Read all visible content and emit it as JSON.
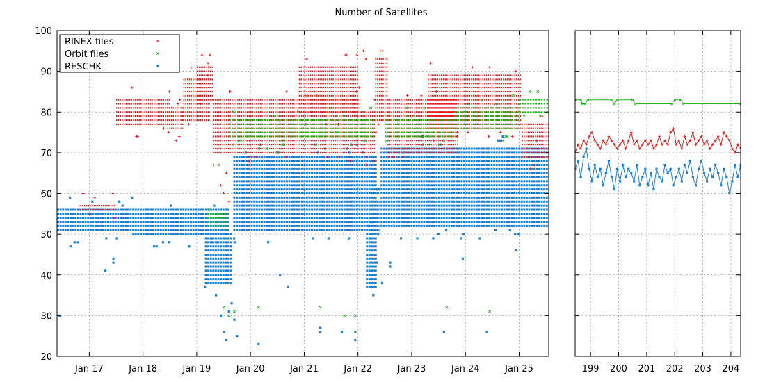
{
  "chart_data": {
    "title": "Number of Satellites",
    "type": "scatter",
    "grid": true,
    "legend_position": "top-left",
    "colors": {
      "rinex": "#e41a1c",
      "orbit": "#1fb51f",
      "reschk": "#1a7fd6"
    },
    "legend": [
      {
        "key": "rinex",
        "label": "RINEX files",
        "marker": "plus"
      },
      {
        "key": "orbit",
        "label": "Orbit files",
        "marker": "cross"
      },
      {
        "key": "reschk",
        "label": "RESCHK",
        "marker": "square"
      }
    ],
    "yaxis": {
      "min": 20,
      "max": 100,
      "ticks": [
        "20",
        "30",
        "40",
        "50",
        "60",
        "70",
        "80",
        "90",
        "100"
      ]
    },
    "left_panel": {
      "xaxis": {
        "min": 16.4,
        "max": 25.55,
        "ticks": [
          17,
          18,
          19,
          20,
          21,
          22,
          23,
          24,
          25
        ],
        "labels": [
          "Jan 17",
          "Jan 18",
          "Jan 19",
          "Jan 20",
          "Jan 21",
          "Jan 22",
          "Jan 23",
          "Jan 24",
          "Jan 25"
        ]
      },
      "bands": [
        {
          "series": "reschk",
          "segments": [
            {
              "x": [
                16.4,
                17.8
              ],
              "y": [
                51,
                56
              ]
            },
            {
              "x": [
                17.8,
                19.6
              ],
              "y": [
                50,
                56
              ]
            },
            {
              "x": [
                19.15,
                19.65
              ],
              "y": [
                38,
                50
              ]
            },
            {
              "x": [
                19.68,
                22.35
              ],
              "y": [
                51,
                69
              ]
            },
            {
              "x": [
                22.15,
                22.35
              ],
              "y": [
                37,
                50
              ]
            },
            {
              "x": [
                22.35,
                22.42
              ],
              "y": [
                51,
                58
              ]
            },
            {
              "x": [
                22.42,
                25.55
              ],
              "y": [
                52,
                71
              ]
            }
          ]
        },
        {
          "series": "rinex",
          "segments": [
            {
              "x": [
                17.5,
                18.5
              ],
              "y": [
                77,
                83
              ]
            },
            {
              "x": [
                18.45,
                18.75
              ],
              "y": [
                76,
                81
              ]
            },
            {
              "x": [
                18.75,
                19.25
              ],
              "y": [
                78,
                88
              ]
            },
            {
              "x": [
                19.0,
                19.3
              ],
              "y": [
                83,
                91
              ]
            },
            {
              "x": [
                19.3,
                22.05
              ],
              "y": [
                70,
                83
              ]
            },
            {
              "x": [
                20.9,
                22.0
              ],
              "y": [
                80,
                91
              ]
            },
            {
              "x": [
                22.05,
                22.32
              ],
              "y": [
                70,
                80
              ]
            },
            {
              "x": [
                22.32,
                22.55
              ],
              "y": [
                78,
                93
              ]
            },
            {
              "x": [
                22.55,
                23.85
              ],
              "y": [
                70,
                83
              ]
            },
            {
              "x": [
                23.3,
                25.05
              ],
              "y": [
                76,
                89
              ]
            },
            {
              "x": [
                25.05,
                25.55
              ],
              "y": [
                69,
                77
              ]
            },
            {
              "x": [
                16.8,
                17.5
              ],
              "y": [
                56,
                57
              ]
            }
          ]
        },
        {
          "series": "orbit",
          "segments": [
            {
              "x": [
                19.2,
                19.6
              ],
              "y": [
                52,
                55
              ]
            },
            {
              "x": [
                19.6,
                22.3
              ],
              "y": [
                74,
                78
              ]
            },
            {
              "x": [
                22.5,
                23.8
              ],
              "y": [
                74,
                78
              ]
            },
            {
              "x": [
                23.8,
                25.0
              ],
              "y": [
                76,
                81
              ]
            },
            {
              "x": [
                25.0,
                25.55
              ],
              "y": [
                80,
                83
              ]
            }
          ]
        }
      ],
      "outliers": {
        "reschk": [
          [
            16.45,
            30
          ],
          [
            16.65,
            47
          ],
          [
            17.3,
            41
          ],
          [
            17.45,
            43
          ],
          [
            17.45,
            44
          ],
          [
            19.45,
            30
          ],
          [
            19.5,
            26
          ],
          [
            19.55,
            24
          ],
          [
            19.6,
            31
          ],
          [
            19.65,
            33
          ],
          [
            19.7,
            29
          ],
          [
            19.75,
            25
          ],
          [
            20.15,
            23
          ],
          [
            20.55,
            40
          ],
          [
            20.7,
            37
          ],
          [
            21.3,
            27
          ],
          [
            21.3,
            26
          ],
          [
            21.7,
            26
          ],
          [
            21.95,
            26
          ],
          [
            21.95,
            24
          ],
          [
            22.35,
            43
          ],
          [
            22.45,
            38
          ],
          [
            22.6,
            42
          ],
          [
            22.6,
            43
          ],
          [
            23.6,
            26
          ],
          [
            23.95,
            44
          ],
          [
            24.4,
            26
          ],
          [
            24.95,
            46
          ]
        ],
        "orbit": [
          [
            19.5,
            32
          ],
          [
            19.6,
            30
          ],
          [
            19.7,
            31
          ],
          [
            20.15,
            32
          ],
          [
            20.3,
            71
          ],
          [
            21.3,
            32
          ],
          [
            21.75,
            30
          ],
          [
            21.95,
            30
          ],
          [
            23.65,
            32
          ],
          [
            24.45,
            31
          ],
          [
            20.5,
            70
          ],
          [
            21.6,
            75
          ]
        ],
        "rinex": [
          [
            19.5,
            60
          ],
          [
            19.45,
            62
          ],
          [
            19.55,
            65
          ],
          [
            19.6,
            58
          ],
          [
            22.1,
            95
          ],
          [
            22.15,
            93
          ],
          [
            24.45,
            91
          ],
          [
            20.1,
            69
          ],
          [
            23.85,
            75
          ]
        ]
      }
    },
    "right_panel": {
      "xaxis": {
        "min": 198.45,
        "max": 204.35,
        "ticks": [
          199,
          200,
          201,
          202,
          203,
          204
        ],
        "labels": [
          "199",
          "200",
          "201",
          "202",
          "203",
          "204"
        ]
      },
      "orbit": [
        [
          198.45,
          83
        ],
        [
          198.65,
          83
        ],
        [
          198.7,
          82
        ],
        [
          198.8,
          82
        ],
        [
          198.9,
          83
        ],
        [
          199.75,
          83
        ],
        [
          199.85,
          82
        ],
        [
          199.95,
          83
        ],
        [
          200.5,
          83
        ],
        [
          200.6,
          82
        ],
        [
          201.9,
          82
        ],
        [
          202.0,
          83
        ],
        [
          202.2,
          83
        ],
        [
          202.3,
          82
        ],
        [
          204.35,
          82
        ]
      ],
      "rinex": [
        [
          198.45,
          70
        ],
        [
          198.55,
          72
        ],
        [
          198.65,
          71
        ],
        [
          198.75,
          73
        ],
        [
          198.85,
          72
        ],
        [
          198.95,
          74
        ],
        [
          199.05,
          75
        ],
        [
          199.15,
          73
        ],
        [
          199.25,
          72
        ],
        [
          199.35,
          71
        ],
        [
          199.45,
          73
        ],
        [
          199.55,
          72
        ],
        [
          199.65,
          74
        ],
        [
          199.75,
          73
        ],
        [
          199.85,
          72
        ],
        [
          199.95,
          71
        ],
        [
          200.05,
          72
        ],
        [
          200.15,
          73
        ],
        [
          200.25,
          71
        ],
        [
          200.35,
          73
        ],
        [
          200.45,
          75
        ],
        [
          200.55,
          72
        ],
        [
          200.65,
          73
        ],
        [
          200.75,
          71
        ],
        [
          200.85,
          72
        ],
        [
          200.95,
          73
        ],
        [
          201.05,
          72
        ],
        [
          201.15,
          73
        ],
        [
          201.25,
          71
        ],
        [
          201.35,
          72
        ],
        [
          201.45,
          74
        ],
        [
          201.55,
          72
        ],
        [
          201.65,
          73
        ],
        [
          201.75,
          72
        ],
        [
          201.85,
          75
        ],
        [
          201.95,
          76
        ],
        [
          202.05,
          72
        ],
        [
          202.15,
          73
        ],
        [
          202.25,
          71
        ],
        [
          202.35,
          74
        ],
        [
          202.45,
          72
        ],
        [
          202.55,
          73
        ],
        [
          202.65,
          75
        ],
        [
          202.75,
          72
        ],
        [
          202.85,
          73
        ],
        [
          202.95,
          74
        ],
        [
          203.05,
          72
        ],
        [
          203.15,
          73
        ],
        [
          203.25,
          71
        ],
        [
          203.35,
          72
        ],
        [
          203.45,
          73
        ],
        [
          203.55,
          74
        ],
        [
          203.65,
          72
        ],
        [
          203.75,
          75
        ],
        [
          203.85,
          74
        ],
        [
          203.95,
          73
        ],
        [
          204.05,
          71
        ],
        [
          204.15,
          70
        ],
        [
          204.25,
          72
        ],
        [
          204.35,
          71
        ]
      ],
      "reschk": [
        [
          198.45,
          66
        ],
        [
          198.55,
          68
        ],
        [
          198.65,
          64
        ],
        [
          198.75,
          69
        ],
        [
          198.85,
          71
        ],
        [
          198.95,
          66
        ],
        [
          199.05,
          63
        ],
        [
          199.15,
          67
        ],
        [
          199.25,
          64
        ],
        [
          199.35,
          66
        ],
        [
          199.45,
          62
        ],
        [
          199.55,
          65
        ],
        [
          199.65,
          68
        ],
        [
          199.75,
          64
        ],
        [
          199.85,
          61
        ],
        [
          199.95,
          66
        ],
        [
          200.05,
          63
        ],
        [
          200.15,
          67
        ],
        [
          200.25,
          64
        ],
        [
          200.35,
          66
        ],
        [
          200.45,
          65
        ],
        [
          200.55,
          63
        ],
        [
          200.65,
          67
        ],
        [
          200.75,
          62
        ],
        [
          200.85,
          64
        ],
        [
          200.95,
          66
        ],
        [
          201.05,
          62
        ],
        [
          201.15,
          65
        ],
        [
          201.25,
          61
        ],
        [
          201.35,
          66
        ],
        [
          201.45,
          64
        ],
        [
          201.55,
          63
        ],
        [
          201.65,
          67
        ],
        [
          201.75,
          65
        ],
        [
          201.85,
          66
        ],
        [
          201.95,
          62
        ],
        [
          202.05,
          64
        ],
        [
          202.15,
          66
        ],
        [
          202.25,
          63
        ],
        [
          202.35,
          67
        ],
        [
          202.45,
          65
        ],
        [
          202.55,
          68
        ],
        [
          202.65,
          64
        ],
        [
          202.75,
          62
        ],
        [
          202.85,
          66
        ],
        [
          202.95,
          68
        ],
        [
          203.05,
          65
        ],
        [
          203.15,
          63
        ],
        [
          203.25,
          66
        ],
        [
          203.35,
          64
        ],
        [
          203.45,
          67
        ],
        [
          203.55,
          65
        ],
        [
          203.65,
          62
        ],
        [
          203.75,
          66
        ],
        [
          203.85,
          64
        ],
        [
          203.95,
          60
        ],
        [
          204.05,
          63
        ],
        [
          204.15,
          67
        ],
        [
          204.25,
          64
        ],
        [
          204.35,
          67
        ]
      ]
    }
  }
}
